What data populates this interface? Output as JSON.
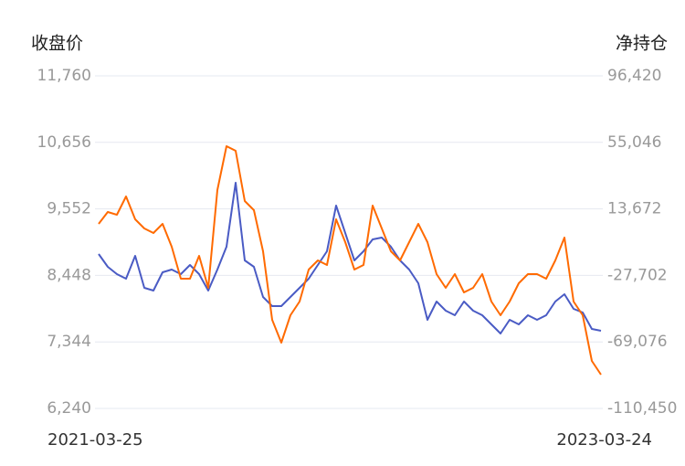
{
  "chart_data": {
    "type": "line",
    "y_label": "收盘价",
    "y2_label": "净持仓",
    "categories": [
      "2021-03-25",
      null,
      null,
      null,
      null,
      null,
      null,
      null,
      null,
      null,
      null,
      null,
      null,
      null,
      null,
      null,
      null,
      null,
      null,
      null,
      null,
      null,
      null,
      null,
      null,
      null,
      null,
      null,
      null,
      null,
      null,
      null,
      null,
      null,
      null,
      null,
      null,
      null,
      null,
      null,
      null,
      null,
      null,
      null,
      null,
      null,
      null,
      null,
      null,
      null,
      null,
      null,
      null,
      null,
      null,
      "2023-03-24"
    ],
    "series": [
      {
        "color": "#4a5bc4",
        "values": [
          8803,
          8591,
          8469,
          8393,
          8772,
          8242,
          8196,
          8500,
          8545,
          8469,
          8621,
          8469,
          8196,
          8545,
          8924,
          9986,
          8697,
          8591,
          8090,
          7938,
          7938,
          8090,
          8242,
          8393,
          8621,
          8848,
          9607,
          9152,
          8697,
          8848,
          9045,
          9076,
          8924,
          8697,
          8545,
          8318,
          7711,
          8014,
          7863,
          7787,
          8014,
          7863,
          7787,
          7635,
          7484,
          7711,
          7635,
          7787,
          7711,
          7787,
          8014,
          8136,
          7893,
          7832,
          7559,
          7529
        ]
      },
      {
        "color": "#ff6a00",
        "axis": "y2",
        "values": [
          4355,
          11743,
          10038,
          21404,
          7197,
          1514,
          -1328,
          4355,
          -9852,
          -29743,
          -29743,
          -15535,
          -35426,
          25382,
          52661,
          49819,
          18563,
          12880,
          -12694,
          -55316,
          -69524,
          -52475,
          -43950,
          -24060,
          -18377,
          -21218,
          7197,
          -7011,
          -24060,
          -21218,
          15721,
          1514,
          -12694,
          -18377,
          -7011,
          4355,
          -7011,
          -26901,
          -35426,
          -26901,
          -38267,
          -35426,
          -26901,
          -43950,
          -52475,
          -43950,
          -32585,
          -26901,
          -26901,
          -29743,
          -18377,
          -4168,
          -43950,
          -52475,
          -80890,
          -89414
        ]
      }
    ],
    "ylim": [
      6240,
      11760
    ],
    "yticks": [
      {
        "value": 6240,
        "label": "6,240"
      },
      {
        "value": 7344,
        "label": "7,344"
      },
      {
        "value": 8448,
        "label": "8,448"
      },
      {
        "value": 9552,
        "label": "9,552"
      },
      {
        "value": 10656,
        "label": "10,656"
      },
      {
        "value": 11760,
        "label": "11,760"
      }
    ],
    "y2lim": [
      -110450,
      96420
    ],
    "y2ticks": [
      {
        "value": -110450,
        "label": "-110,450"
      },
      {
        "value": -69076,
        "label": "-69,076"
      },
      {
        "value": -27702,
        "label": "-27,702"
      },
      {
        "value": 13672,
        "label": "13,672"
      },
      {
        "value": 55046,
        "label": "55,046"
      },
      {
        "value": 96420,
        "label": "96,420"
      }
    ],
    "grid": true
  }
}
